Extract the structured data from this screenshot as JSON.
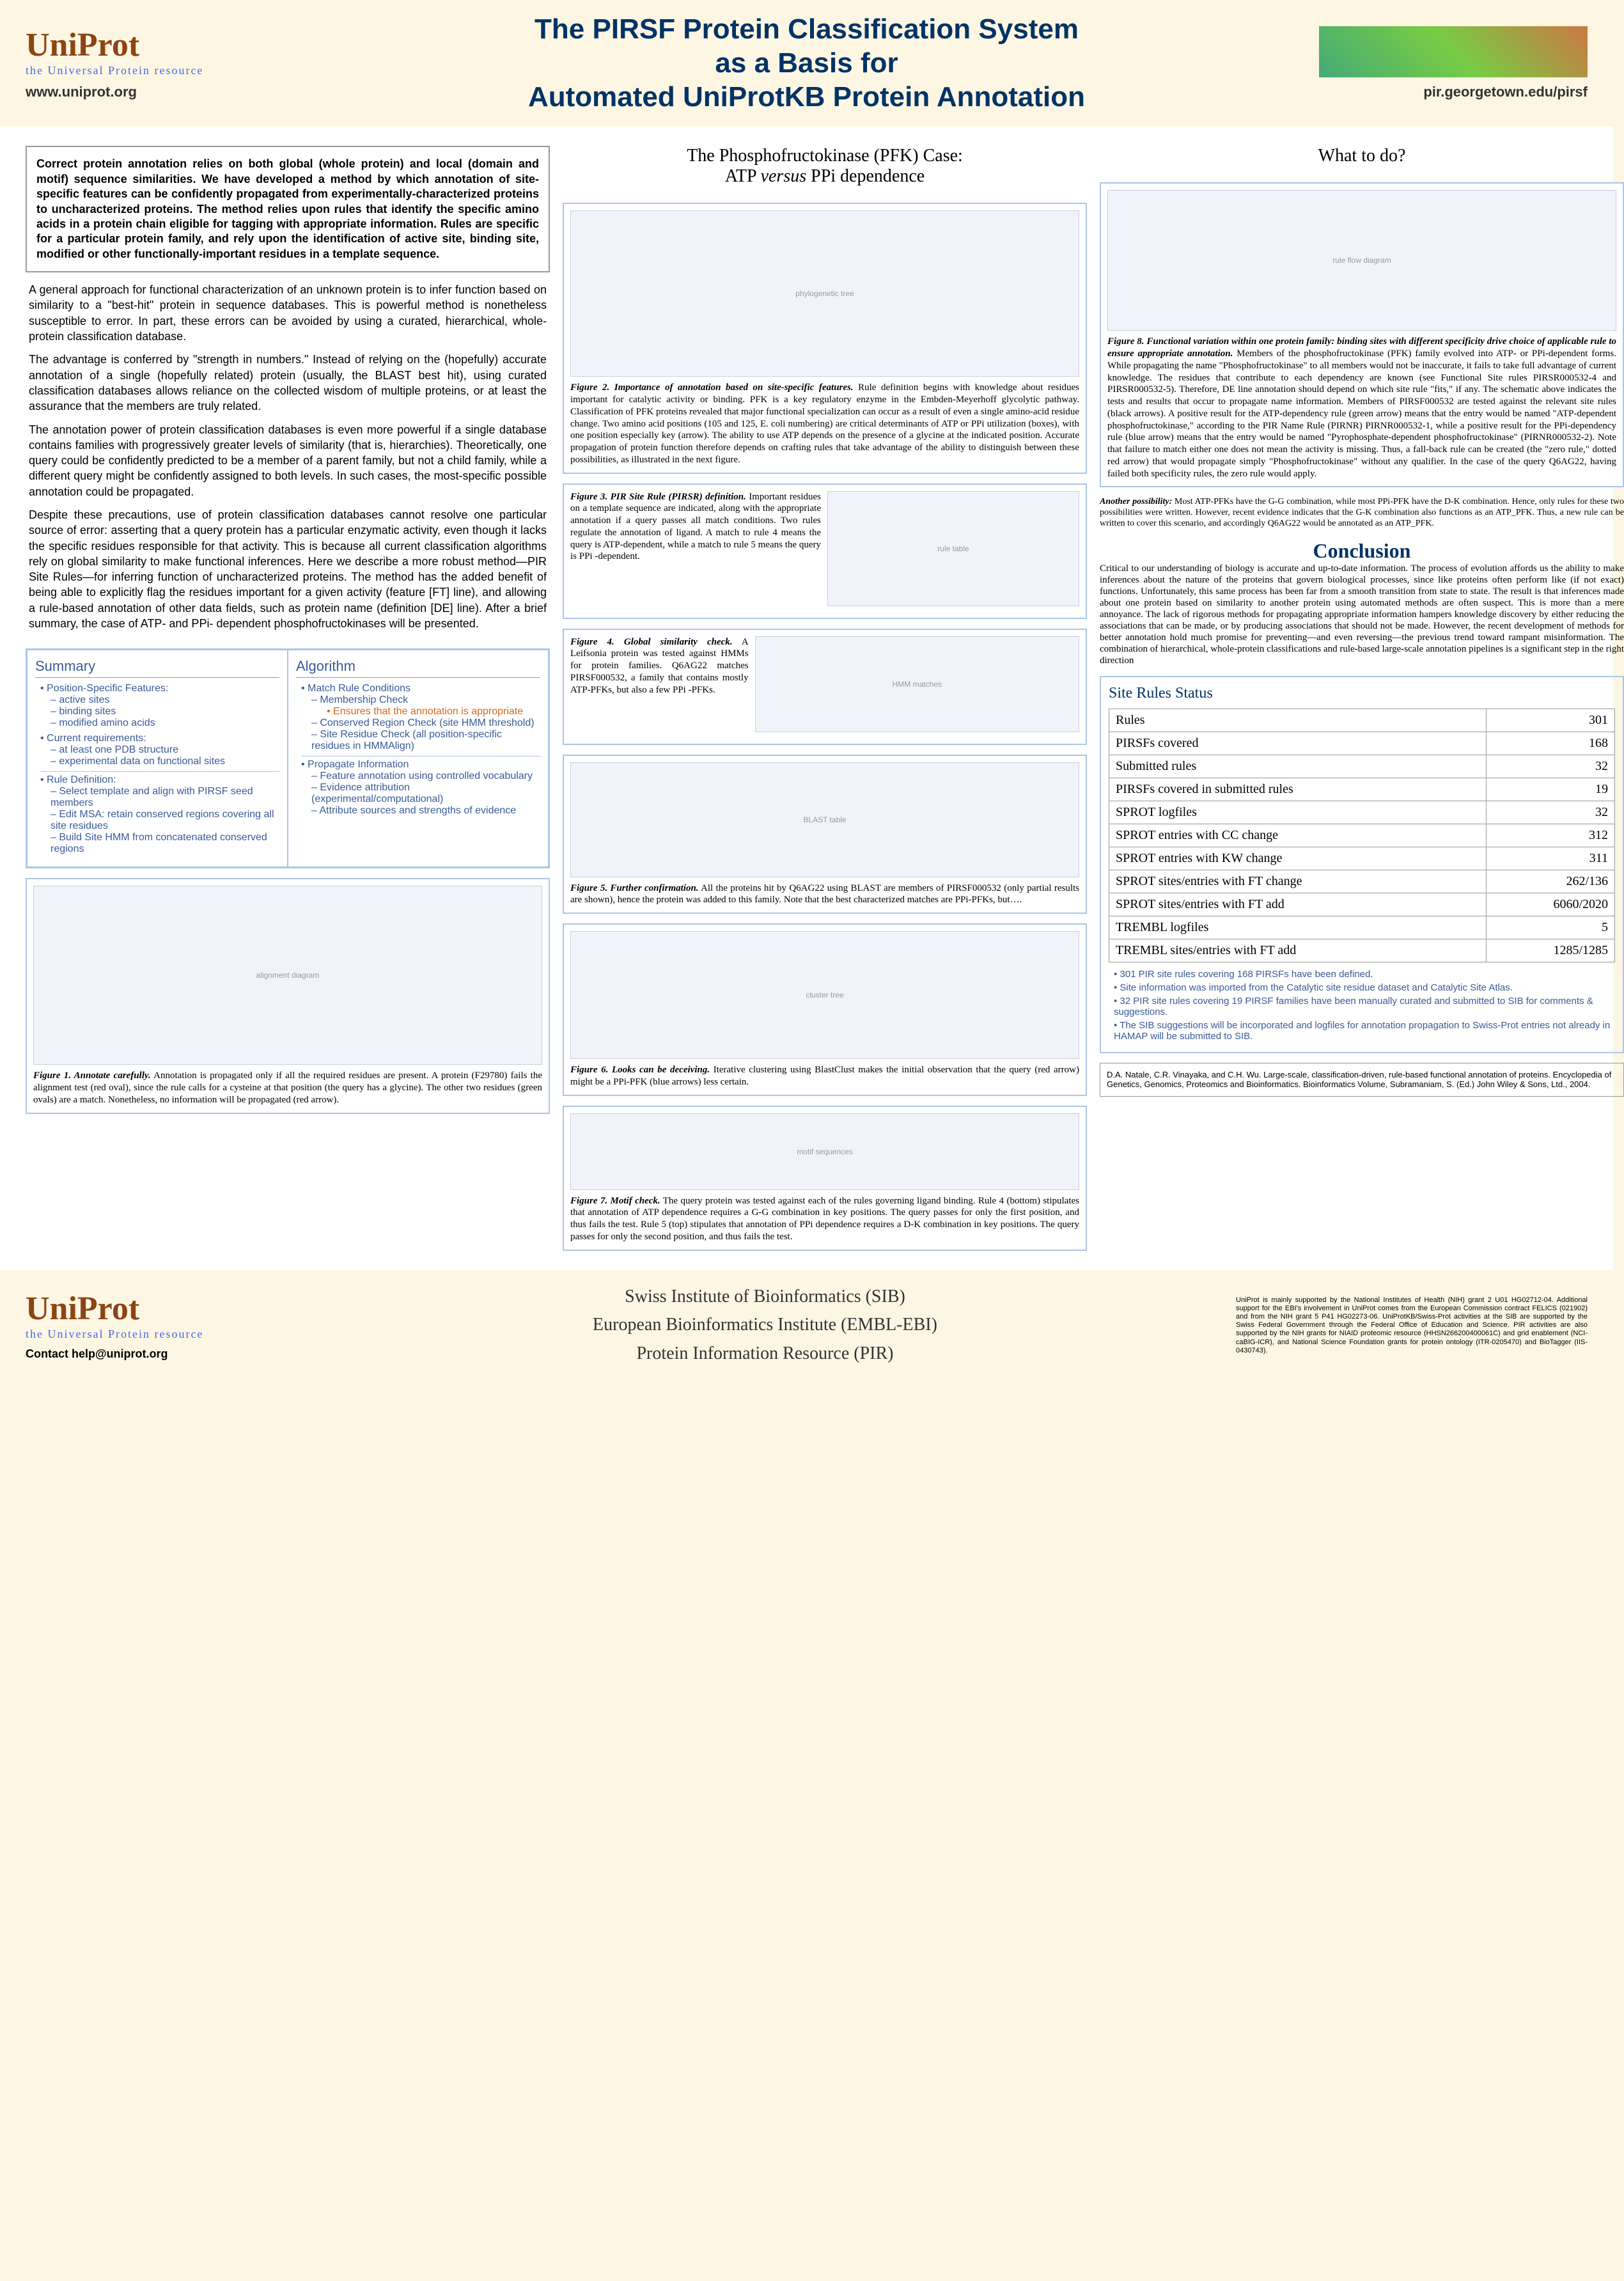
{
  "header": {
    "logo_title": "UniProt",
    "logo_sub": "the Universal Protein resource",
    "main_title_1": "The PIRSF Protein Classification System",
    "main_title_2": "as a Basis for",
    "main_title_3": "Automated UniProtKB Protein Annotation",
    "url_left": "www.uniprot.org",
    "url_right": "pir.georgetown.edu/pirsf"
  },
  "abstract": "Correct protein annotation relies on both global (whole protein) and local (domain and motif) sequence similarities. We have developed a method by which annotation of site-specific features can be confidently propagated from experimentally-characterized proteins to uncharacterized proteins. The method relies upon rules that identify the specific amino acids in a protein chain eligible for tagging with appropriate information. Rules are specific for a particular protein family, and rely upon the identification of active site, binding site, modified or other functionally-important residues in a template sequence.",
  "body": {
    "p1": "A general approach for functional characterization of an unknown protein is to infer function based on similarity to a \"best-hit\" protein in sequence databases. This is powerful method is nonetheless susceptible to error. In part, these errors can be avoided by using a curated, hierarchical, whole-protein classification database.",
    "p2": "The advantage is conferred by \"strength in numbers.\" Instead of relying on the (hopefully) accurate annotation of a single (hopefully related) protein (usually, the BLAST best hit), using curated classification databases allows reliance on the collected wisdom of multiple proteins, or at least the assurance that the members are truly related.",
    "p3": "The annotation power of protein classification databases is even more powerful if a single database contains families with progressively greater levels of similarity (that is, hierarchies). Theoretically, one query could be confidently predicted to be a member of a parent family, but not a child family, while a different query might be confidently assigned to both levels. In such cases, the most-specific possible annotation could be propagated.",
    "p4": "Despite these precautions, use of protein classification databases cannot resolve one particular source of error: asserting that a query protein has a particular enzymatic activity, even though it lacks the specific residues responsible for that activity. This is because all current classification algorithms rely on global similarity to make functional inferences. Here we describe a more robust method—PIR Site Rules—for inferring function of uncharacterized proteins. The method has the added benefit of being able to explicitly flag the residues important for a given activity (feature [FT] line), and allowing a rule-based annotation of other data fields, such as protein name (definition [DE] line). After a brief summary, the case of ATP- and PPi- dependent phosphofructokinases will be presented."
  },
  "summary": {
    "title": "Summary",
    "items": [
      {
        "label": "Position-Specific Features:",
        "subs": [
          "active sites",
          "binding sites",
          "modified amino acids"
        ]
      },
      {
        "label": "Current requirements:",
        "subs": [
          "at least one PDB structure",
          "experimental data on functional sites"
        ]
      },
      {
        "label": "Rule Definition:",
        "subs": [
          "Select template and align with PIRSF seed members",
          "Edit MSA: retain conserved regions covering all site residues",
          "Build Site HMM from concatenated conserved regions"
        ]
      }
    ]
  },
  "algorithm": {
    "title": "Algorithm",
    "items": [
      {
        "label": "Match Rule Conditions",
        "subs": [
          "Membership Check"
        ],
        "subsub": [
          "Ensures that the annotation is appropriate"
        ],
        "subs2": [
          "Conserved Region Check (site HMM threshold)",
          "Site Residue Check (all position-specific residues in HMMAlign)"
        ]
      },
      {
        "label": "Propagate Information",
        "subs": [
          "Feature annotation using controlled vocabulary",
          "Evidence attribution (experimental/computational)",
          "Attribute sources and strengths of evidence"
        ]
      }
    ]
  },
  "col2_title": "The Phosphofructokinase (PFK) Case: ATP versus PPi dependence",
  "fig1": {
    "caption_bold": "Figure 1. Annotate carefully.",
    "caption": " Annotation is propagated only if all the required residues are present. A protein (F29780) fails the alignment test (red oval), since the rule calls for a cysteine at that position (the query has a glycine). The other two residues (green ovals) are a match. Nonetheless, no information will be propagated (red arrow)."
  },
  "fig2": {
    "caption_bold": "Figure 2. Importance of annotation based on site-specific features.",
    "caption": " Rule definition begins with knowledge about residues important for catalytic activity or binding. PFK is a key regulatory enzyme in the Embden-Meyerhoff glycolytic pathway. Classification of PFK proteins revealed that major functional specialization can occur as a result of even a single amino-acid residue change. Two amino acid positions (105 and 125, E. coli numbering) are critical determinants of ATP or PPi utilization (boxes), with one position especially key (arrow). The ability to use ATP depends on the presence of a glycine at the indicated position. Accurate propagation of protein function therefore depends on crafting rules that take advantage of the ability to distinguish between these possibilities, as illustrated in the next figure."
  },
  "fig3": {
    "caption_bold": "Figure 3. PIR Site Rule (PIRSR) definition.",
    "caption": " Important residues on a template sequence are indicated, along with the appropriate annotation if a query passes all match conditions. Two rules regulate the annotation of ligand. A match to rule 4 means the query is ATP-dependent, while a match to rule 5 means the query is PPi -dependent."
  },
  "fig4": {
    "caption_bold": "Figure 4. Global similarity check.",
    "caption": " A Leifsonia protein was tested against HMMs for protein families. Q6AG22 matches PIRSF000532, a family that contains mostly ATP-PFKs, but also a few PPi -PFKs."
  },
  "fig5": {
    "caption_bold": "Figure 5. Further confirmation.",
    "caption": " All the proteins hit by Q6AG22 using BLAST are members of PIRSF000532 (only partial results are shown), hence the protein was added to this family. Note that the best characterized matches are PPi-PFKs, but…."
  },
  "fig6": {
    "caption_bold": "Figure 6. Looks can be deceiving.",
    "caption": " Iterative clustering using BlastClust makes the initial observation that the query (red arrow) might be a PPi-PFK (blue arrows) less certain."
  },
  "fig7": {
    "caption_bold": "Figure 7. Motif check.",
    "caption": " The query protein was tested against each of the rules governing ligand binding. Rule 4 (bottom) stipulates that annotation of ATP dependence requires a G-G combination in key positions. The query passes for only the first position, and thus fails the test. Rule 5 (top) stipulates that annotation of PPi dependence requires a D-K combination in key positions. The query passes for only the second position, and thus fails the test."
  },
  "col3_title": "What to do?",
  "fig8": {
    "caption_bold": "Figure 8. Functional variation within one protein family: binding sites with different specificity drive choice of applicable rule to ensure appropriate annotation.",
    "caption": " Members of the phosphofructokinase (PFK) family evolved into ATP- or PPi-dependent forms. While propagating the name \"Phosphofructokinase\" to all members would not be inaccurate, it fails to take full advantage of current knowledge. The residues that contribute to each dependency are known (see Functional Site rules PIRSR000532-4 and PIRSR000532-5). Therefore, DE line annotation should depend on which site rule \"fits,\" if any. The schematic above indicates the tests and results that occur to propagate name information. Members of PIRSF000532 are tested against the relevant site rules (black arrows). A positive result for the ATP-dependency rule (green arrow) means that the entry would be named \"ATP-dependent phosphofructokinase,\" according to the PIR Name Rule (PIRNR) PIRNR000532-1, while a positive result for the PPi-dependency rule (blue arrow) means that the entry would be named \"Pyrophosphate-dependent phosphofructokinase\" (PIRNR000532-2). Note that failure to match either one does not mean the activity is missing. Thus, a fall-back rule can be created (the \"zero rule,\" dotted red arrow) that would propagate simply \"Phosphofructokinase\" without any qualifier. In the case of the query Q6AG22, having failed both specificity rules, the zero rule would apply."
  },
  "another": {
    "bold": "Another possibility:",
    "text": " Most ATP-PFKs have the G-G combination, while most PPi-PFK have the D-K combination. Hence, only rules for these two possibilities were written. However, recent evidence indicates that the G-K combination also functions as an ATP_PFK. Thus, a new rule can be written to cover this scenario, and accordingly Q6AG22 would be annotated as an ATP_PFK."
  },
  "conclusion": {
    "title": "Conclusion",
    "text": "Critical to our understanding of biology is accurate and up-to-date information. The process of evolution affords us the ability to make inferences about the nature of the proteins that govern biological processes, since like proteins often perform like (if not exact) functions. Unfortunately, this same process has been far from a smooth transition from state to state. The result is that inferences made about one protein based on similarity to another protein using automated methods are often suspect. This is more than a mere annoyance. The lack of rigorous methods for propagating appropriate information hampers knowledge discovery by either reducing the associations that can be made, or by producing associations that should not be made. However, the recent development of methods for better annotation hold much promise for preventing—and even reversing—the previous trend toward rampant misinformation. The combination of hierarchical, whole-protein classifications and rule-based large-scale annotation pipelines is a significant step in the right direction"
  },
  "status": {
    "title": "Site Rules Status",
    "rows": [
      [
        "Rules",
        "301"
      ],
      [
        "PIRSFs covered",
        "168"
      ],
      [
        "Submitted rules",
        "32"
      ],
      [
        "PIRSFs covered in submitted rules",
        "19"
      ],
      [
        "SPROT logfiles",
        "32"
      ],
      [
        "SPROT entries with CC change",
        "312"
      ],
      [
        "SPROT entries with KW change",
        "311"
      ],
      [
        "SPROT sites/entries with FT change",
        "262/136"
      ],
      [
        "SPROT sites/entries with FT add",
        "6060/2020"
      ],
      [
        "TREMBL logfiles",
        "5"
      ],
      [
        "TREMBL sites/entries with FT add",
        "1285/1285"
      ]
    ],
    "notes": [
      "301 PIR site rules covering 168 PIRSFs have been defined.",
      "Site information was imported from the Catalytic site residue dataset and Catalytic Site Atlas.",
      "32 PIR site rules covering 19 PIRSF families have been manually curated and submitted to SIB for comments & suggestions.",
      "The SIB suggestions will be incorporated and logfiles for annotation propagation to Swiss-Prot entries not already in HAMAP will be submitted to SIB."
    ]
  },
  "reference": "D.A. Natale, C.R. Vinayaka, and C.H. Wu. Large-scale, classification-driven, rule-based functional annotation of proteins. Encyclopedia of Genetics, Genomics, Proteomics and Bioinformatics. Bioinformatics Volume, Subramaniam, S. (Ed.) John Wiley & Sons, Ltd., 2004.",
  "footer": {
    "contact": "Contact help@uniprot.org",
    "inst1": "Swiss Institute of Bioinformatics (SIB)",
    "inst2": "European Bioinformatics Institute (EMBL-EBI)",
    "inst3": "Protein Information Resource (PIR)",
    "funding": "UniProt is mainly supported by the National Institutes of Health (NIH) grant 2 U01 HG02712-04. Additional support for the EBI's involvement in UniProt comes from the European Commission contract FELICS (021902) and from the NIH grant 5 P41 HG02273-06. UniProtKB/Swiss-Prot activities at the SIB are supported by the Swiss Federal Government through the Federal Office of Education and Science. PIR activities are also supported by the NIH grants for NIAID proteomic resource (HHSN266200400061C) and grid enablement (NCI-caBIG-ICR), and National Science Foundation grants for protein ontology (ITR-0205470) and BioTagger (IIS-0430743)."
  }
}
